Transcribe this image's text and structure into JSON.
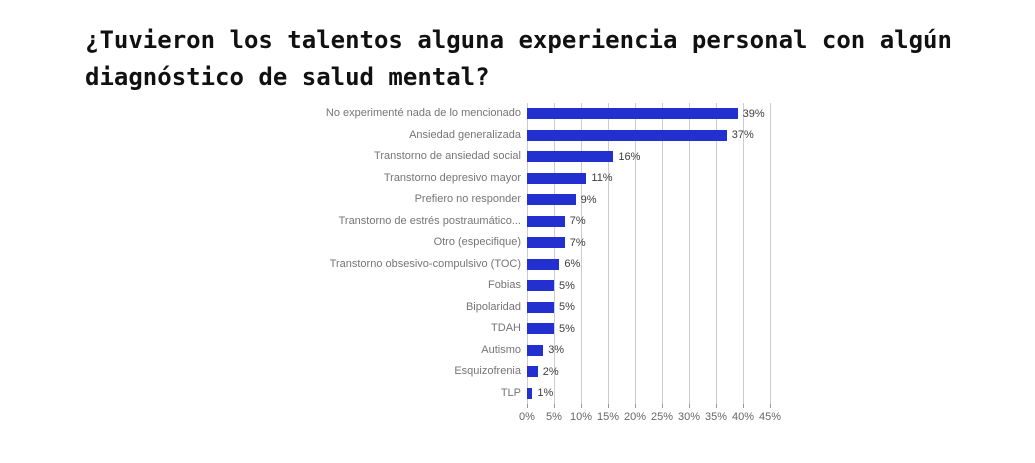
{
  "page": {
    "background": "#ffffff",
    "title_line1": "¿Tuvieron los talentos alguna experiencia personal con algún",
    "title_line2": "diagnóstico de salud mental?"
  },
  "chart_data": {
    "type": "bar",
    "orientation": "horizontal",
    "title": "¿Tuvieron los talentos alguna experiencia personal con algún diagnóstico de salud mental?",
    "categories": [
      "No experimenté nada de lo mencionado",
      "Ansiedad generalizada",
      "Transtorno de ansiedad social",
      "Transtorno depresivo mayor",
      "Prefiero no responder",
      "Transtorno de estrés postraumático...",
      "Otro (especifique)",
      "Transtorno obsesivo-compulsivo (TOC)",
      "Fobias",
      "Bipolaridad",
      "TDAH",
      "Autismo",
      "Esquizofrenia",
      "TLP"
    ],
    "values": [
      39,
      37,
      16,
      11,
      9,
      7,
      7,
      6,
      5,
      5,
      5,
      3,
      2,
      1
    ],
    "value_labels": [
      "39%",
      "37%",
      "16%",
      "11%",
      "9%",
      "7%",
      "7%",
      "6%",
      "5%",
      "5%",
      "5%",
      "3%",
      "2%",
      "1%"
    ],
    "xlabel": "",
    "ylabel": "",
    "xlim": [
      0,
      45
    ],
    "x_tick_values": [
      0,
      5,
      10,
      15,
      20,
      25,
      30,
      35,
      40,
      45
    ],
    "x_tick_labels": [
      "0%",
      "5%",
      "10%",
      "15%",
      "20%",
      "25%",
      "30%",
      "35%",
      "40%",
      "45%"
    ],
    "grid": true,
    "legend": false,
    "colors": {
      "bar": "#2230d0",
      "category_label": "#757575",
      "value_label": "#3d3d3d",
      "axis_label": "#666666",
      "gridline": "#cccccc",
      "tick": "#999999",
      "title": "#111111"
    }
  }
}
